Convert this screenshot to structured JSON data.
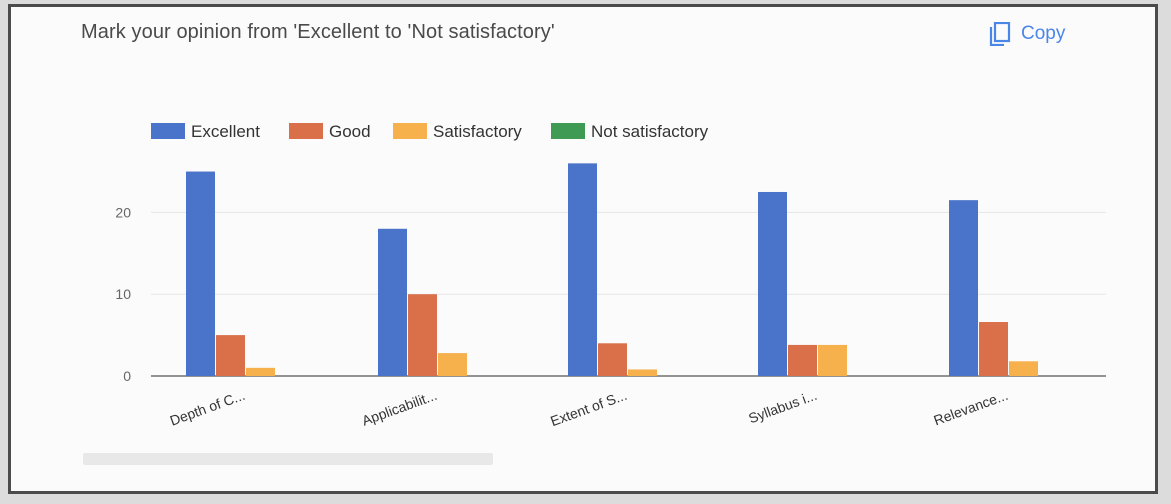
{
  "card": {
    "title": "Mark your opinion from 'Excellent to 'Not satisfactory'",
    "copy_label": "Copy"
  },
  "colors": {
    "excellent": "#4a74c9",
    "good": "#d9704a",
    "satisfactory": "#f6b14d",
    "not_satisfactory": "#3f9a54",
    "copy_accent": "#4a86e8"
  },
  "chart_data": {
    "type": "bar",
    "categories": [
      "Depth of C...",
      "Applicabilit...",
      "Extent of S...",
      "Syllabus i...",
      "Relevance..."
    ],
    "series": [
      {
        "name": "Excellent",
        "values": [
          25,
          18,
          26,
          22.5,
          21.5
        ]
      },
      {
        "name": "Good",
        "values": [
          5,
          10,
          4,
          3.8,
          6.6
        ]
      },
      {
        "name": "Satisfactory",
        "values": [
          1,
          2.8,
          0.8,
          3.8,
          1.8
        ]
      },
      {
        "name": "Not satisfactory",
        "values": [
          0,
          0,
          0,
          0,
          0
        ]
      }
    ],
    "yticks": [
      "0",
      "10",
      "20"
    ],
    "ylim": [
      0,
      28
    ],
    "legend_position": "top",
    "grid": true
  }
}
